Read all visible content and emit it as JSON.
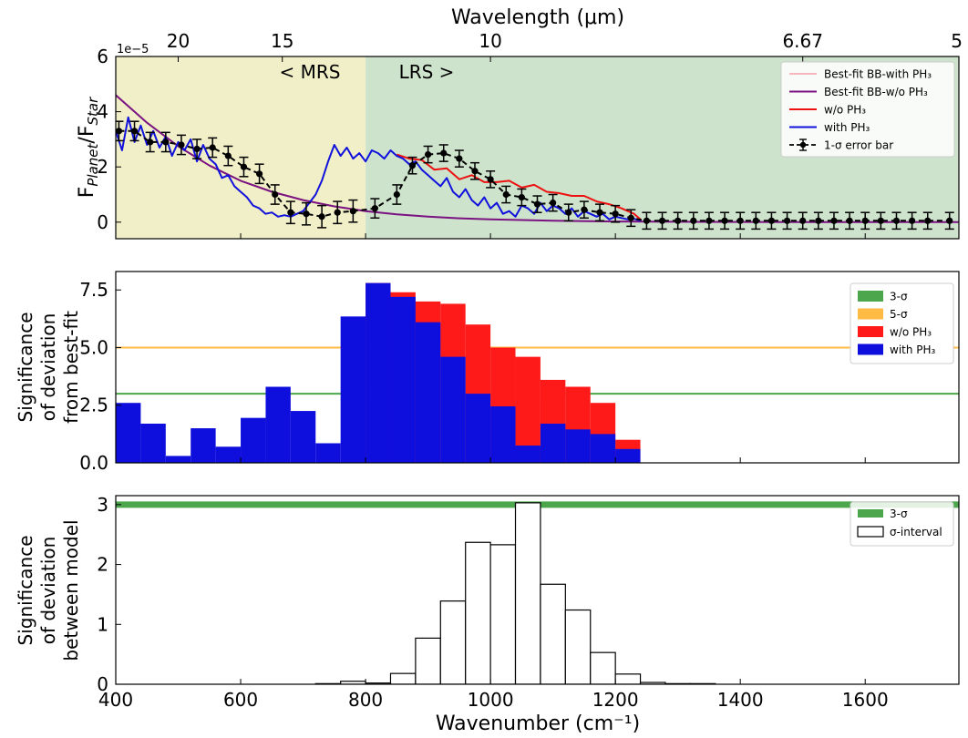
{
  "figure": {
    "top_axis_label": "Wavelength (μm)",
    "top_ticks": [
      {
        "label": "20",
        "wavenumber": 500
      },
      {
        "label": "15",
        "wavenumber": 666.67
      },
      {
        "label": "10",
        "wavenumber": 1000
      },
      {
        "label": "6.67",
        "wavenumber": 1500
      },
      {
        "label": "5",
        "wavenumber": 2000
      }
    ],
    "x_label": "Wavenumber (cm⁻¹)",
    "x_ticks": [
      "400",
      "600",
      "800",
      "1000",
      "1200",
      "1400",
      "1600"
    ],
    "xlim": [
      400,
      1750
    ]
  },
  "chart_data": [
    {
      "type": "line",
      "ylabel": "F_Planet/F_Star",
      "y_scale_label": "1e−5",
      "ylim": [
        -0.6,
        6
      ],
      "yticks": [
        "0",
        "2",
        "4",
        "6"
      ],
      "regions": [
        {
          "label": "< MRS",
          "x": [
            400,
            800
          ],
          "color": "#f1efc7"
        },
        {
          "label": "LRS >",
          "x": [
            800,
            1750
          ],
          "color": "#cde3cc"
        }
      ],
      "legend": {
        "location": "top-right",
        "entries": [
          {
            "label": "Best-fit BB-with PH₃",
            "color": "#f5b7bd"
          },
          {
            "label": "Best-fit BB-w/o PH₃",
            "color": "#7b1281"
          },
          {
            "label": "w/o PH₃",
            "color": "#ee1111"
          },
          {
            "label": "with PH₃",
            "color": "#1111dd"
          },
          {
            "label": "1-σ error bar",
            "color": "#000000"
          }
        ]
      },
      "blackbody": {
        "x": [
          400,
          450,
          500,
          550,
          600,
          650,
          700,
          750,
          800,
          850,
          900,
          950,
          1000,
          1100,
          1200,
          1300,
          1400,
          1500,
          1600,
          1750
        ],
        "y": [
          4.6,
          3.6,
          2.75,
          2.05,
          1.5,
          1.1,
          0.8,
          0.57,
          0.4,
          0.28,
          0.2,
          0.14,
          0.1,
          0.05,
          0.025,
          0.013,
          0.007,
          0.004,
          0.002,
          0.001
        ]
      },
      "with_ph3": {
        "x": [
          400,
          410,
          420,
          430,
          440,
          450,
          460,
          470,
          480,
          490,
          500,
          510,
          520,
          530,
          540,
          550,
          560,
          570,
          580,
          590,
          600,
          610,
          620,
          630,
          640,
          650,
          660,
          670,
          680,
          690,
          700,
          710,
          720,
          730,
          740,
          750,
          760,
          770,
          780,
          790,
          800,
          810,
          820,
          830,
          840,
          850,
          860,
          870,
          880,
          890,
          900,
          910,
          920,
          930,
          940,
          950,
          960,
          970,
          980,
          990,
          1000,
          1010,
          1020,
          1030,
          1040,
          1050,
          1060,
          1070,
          1080,
          1090,
          1100,
          1110,
          1120,
          1130,
          1140,
          1150,
          1160,
          1170,
          1180,
          1190,
          1200,
          1210,
          1220,
          1230,
          1240
        ],
        "y": [
          3.3,
          2.6,
          3.8,
          2.9,
          3.5,
          2.8,
          3.3,
          2.7,
          3.1,
          2.4,
          2.9,
          2.6,
          3.0,
          2.2,
          2.8,
          2.3,
          2.1,
          1.6,
          1.7,
          1.3,
          1.1,
          0.9,
          0.6,
          0.5,
          0.3,
          0.35,
          0.2,
          0.25,
          0.2,
          0.3,
          0.4,
          0.7,
          1.0,
          1.5,
          2.2,
          2.8,
          2.4,
          2.7,
          2.3,
          2.5,
          2.2,
          2.6,
          2.5,
          2.3,
          2.6,
          2.4,
          2.3,
          2.1,
          2.2,
          1.9,
          1.7,
          1.5,
          1.3,
          1.6,
          1.1,
          0.9,
          1.2,
          0.8,
          0.6,
          0.9,
          0.5,
          0.7,
          0.3,
          0.4,
          0.2,
          0.6,
          0.5,
          0.3,
          0.7,
          0.4,
          0.6,
          0.5,
          0.3,
          0.5,
          0.2,
          0.4,
          0.3,
          0.2,
          0.3,
          0.1,
          0.2,
          0.15,
          0.1,
          0.12,
          0.05
        ]
      },
      "without_ph3": {
        "x": [
          850,
          870,
          890,
          910,
          930,
          950,
          970,
          990,
          1010,
          1030,
          1050,
          1070,
          1090,
          1110,
          1130,
          1150,
          1170,
          1190,
          1210,
          1230,
          1240
        ],
        "y": [
          2.45,
          2.3,
          2.25,
          1.9,
          1.95,
          1.55,
          1.7,
          1.45,
          1.45,
          1.5,
          1.25,
          1.35,
          1.1,
          1.05,
          0.95,
          0.95,
          0.75,
          0.65,
          0.5,
          0.3,
          0.1
        ]
      },
      "errorbars": {
        "x": [
          405,
          430,
          455,
          480,
          505,
          530,
          555,
          580,
          605,
          630,
          655,
          680,
          705,
          730,
          755,
          780,
          815,
          850,
          875,
          900,
          925,
          950,
          975,
          1000,
          1025,
          1050,
          1075,
          1100,
          1125,
          1150,
          1175,
          1200,
          1225,
          1250,
          1275,
          1300,
          1325,
          1350,
          1375,
          1400,
          1425,
          1450,
          1475,
          1500,
          1525,
          1550,
          1575,
          1600,
          1625,
          1650,
          1675,
          1700,
          1735
        ],
        "y": [
          3.3,
          3.3,
          2.9,
          2.9,
          2.8,
          2.65,
          2.7,
          2.4,
          2.0,
          1.75,
          1.0,
          0.35,
          0.3,
          0.2,
          0.35,
          0.4,
          0.5,
          1.0,
          2.05,
          2.45,
          2.5,
          2.3,
          1.85,
          1.55,
          1.0,
          0.9,
          0.65,
          0.7,
          0.35,
          0.45,
          0.35,
          0.3,
          0.15,
          0.05,
          0.05,
          0.05,
          0.05,
          0.05,
          0.05,
          0.05,
          0.05,
          0.05,
          0.05,
          0.05,
          0.05,
          0.05,
          0.05,
          0.05,
          0.05,
          0.05,
          0.05,
          0.05,
          0.05
        ],
        "err": [
          0.35,
          0.35,
          0.35,
          0.35,
          0.35,
          0.35,
          0.35,
          0.35,
          0.35,
          0.35,
          0.35,
          0.4,
          0.4,
          0.4,
          0.4,
          0.4,
          0.35,
          0.35,
          0.3,
          0.3,
          0.3,
          0.3,
          0.3,
          0.3,
          0.3,
          0.3,
          0.3,
          0.3,
          0.3,
          0.3,
          0.3,
          0.3,
          0.3,
          0.3,
          0.3,
          0.3,
          0.3,
          0.3,
          0.3,
          0.3,
          0.3,
          0.3,
          0.3,
          0.3,
          0.3,
          0.3,
          0.3,
          0.3,
          0.3,
          0.3,
          0.3,
          0.3,
          0.3
        ]
      }
    },
    {
      "type": "bar",
      "ylabel": [
        "Significance",
        "of deviation",
        "from best-fit"
      ],
      "ylim": [
        0,
        8.3
      ],
      "yticks": [
        "0.0",
        "2.5",
        "5.0",
        "7.5"
      ],
      "hlines": [
        {
          "label": "3-σ",
          "y": 3,
          "color": "#4ca64c"
        },
        {
          "label": "5-σ",
          "y": 5,
          "color": "#ffbb44"
        }
      ],
      "bin_edges": [
        400,
        440,
        480,
        520,
        560,
        600,
        640,
        680,
        720,
        760,
        800,
        840,
        880,
        920,
        960,
        1000,
        1040,
        1080,
        1120,
        1160,
        1200,
        1240
      ],
      "series": [
        {
          "name": "w/o PH₃",
          "color": "#ff1a1a",
          "values": [
            0,
            0,
            0,
            0,
            0,
            0,
            0,
            0,
            0,
            0,
            7.8,
            7.4,
            7.0,
            6.9,
            6.0,
            5.0,
            4.6,
            3.6,
            3.3,
            2.6,
            1.0
          ]
        },
        {
          "name": "with PH₃",
          "color": "#0f0fdd",
          "values": [
            2.6,
            1.7,
            0.3,
            1.5,
            0.7,
            1.95,
            3.3,
            2.25,
            0.85,
            6.35,
            7.8,
            7.2,
            6.1,
            4.6,
            3.0,
            2.45,
            0.75,
            1.7,
            1.45,
            1.25,
            0.6
          ]
        }
      ],
      "legend": {
        "location": "top-right"
      }
    },
    {
      "type": "bar",
      "ylabel": [
        "Significance",
        "of deviation",
        "between model"
      ],
      "ylim": [
        0,
        3.15
      ],
      "yticks": [
        "0",
        "1",
        "2",
        "3"
      ],
      "hlines": [
        {
          "label": "3-σ",
          "y": 3,
          "color": "#4ca64c"
        }
      ],
      "bin_edges": [
        720,
        760,
        800,
        840,
        880,
        920,
        960,
        1000,
        1040,
        1080,
        1120,
        1160,
        1200,
        1240,
        1280,
        1320,
        1360
      ],
      "series": [
        {
          "name": "σ-interval",
          "color": "#ffffff",
          "values": [
            0.01,
            0.05,
            0.02,
            0.18,
            0.77,
            1.39,
            2.37,
            2.33,
            3.03,
            1.67,
            1.24,
            0.53,
            0.17,
            0.03,
            0.01,
            0.01
          ]
        }
      ],
      "legend": {
        "location": "top-right"
      }
    }
  ]
}
